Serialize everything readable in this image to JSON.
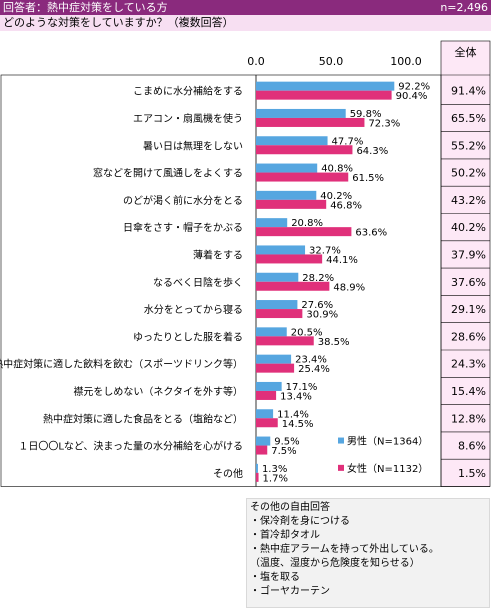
{
  "header": {
    "title": "回答者：熱中症対策をしている方",
    "n": "n=2,496"
  },
  "question": "どのような対策をしていますか？（複数回答）",
  "total_header": "全体",
  "colors": {
    "male": "#56a6e0",
    "female": "#e0307a",
    "header": "#8a2a7d",
    "question_bg": "#f7dff2",
    "total_bg": "#fde8f6"
  },
  "chart_data": {
    "type": "bar",
    "orientation": "horizontal",
    "xlim": [
      0,
      100
    ],
    "xticks": [
      "0.0",
      "50.0",
      "100.0"
    ],
    "categories": [
      "こまめに水分補給をする",
      "エアコン・扇風機を使う",
      "暑い日は無理をしない",
      "窓などを開けて風通しをよくする",
      "のどが渇く前に水分をとる",
      "日傘をさす・帽子をかぶる",
      "薄着をする",
      "なるべく日陰を歩く",
      "水分をとってから寝る",
      "ゆったりとした服を着る",
      "熱中症対策に適した飲料を飲む（スポーツドリンク等）",
      "襟元をしめない（ネクタイを外す等）",
      "熱中症対策に適した食品をとる（塩飴など）",
      "１日〇〇Lなど、決まった量の水分補給を心がける",
      "その他"
    ],
    "series": [
      {
        "name": "男性（N=1364）",
        "values": [
          92.2,
          59.8,
          47.7,
          40.8,
          40.2,
          20.8,
          32.7,
          28.2,
          27.6,
          20.5,
          23.4,
          17.1,
          11.4,
          9.5,
          1.3
        ]
      },
      {
        "name": "女性（N=1132）",
        "values": [
          90.4,
          72.3,
          64.3,
          61.5,
          46.8,
          63.6,
          44.1,
          48.9,
          30.9,
          38.5,
          25.4,
          13.4,
          14.5,
          7.5,
          1.7
        ]
      }
    ],
    "totals": [
      "91.4%",
      "65.5%",
      "55.2%",
      "50.2%",
      "43.2%",
      "40.2%",
      "37.9%",
      "37.6%",
      "29.1%",
      "28.6%",
      "24.3%",
      "15.4%",
      "12.8%",
      "8.6%",
      "1.5%"
    ]
  },
  "free_answers": {
    "title": "その他の自由回答",
    "items": [
      "・保冷剤を身につける",
      "・首冷却タオル",
      "・熱中症アラームを持って外出している。",
      "（温度、湿度から危険度を知らせる）",
      "・塩を取る",
      "・ゴーヤカーテン"
    ]
  }
}
